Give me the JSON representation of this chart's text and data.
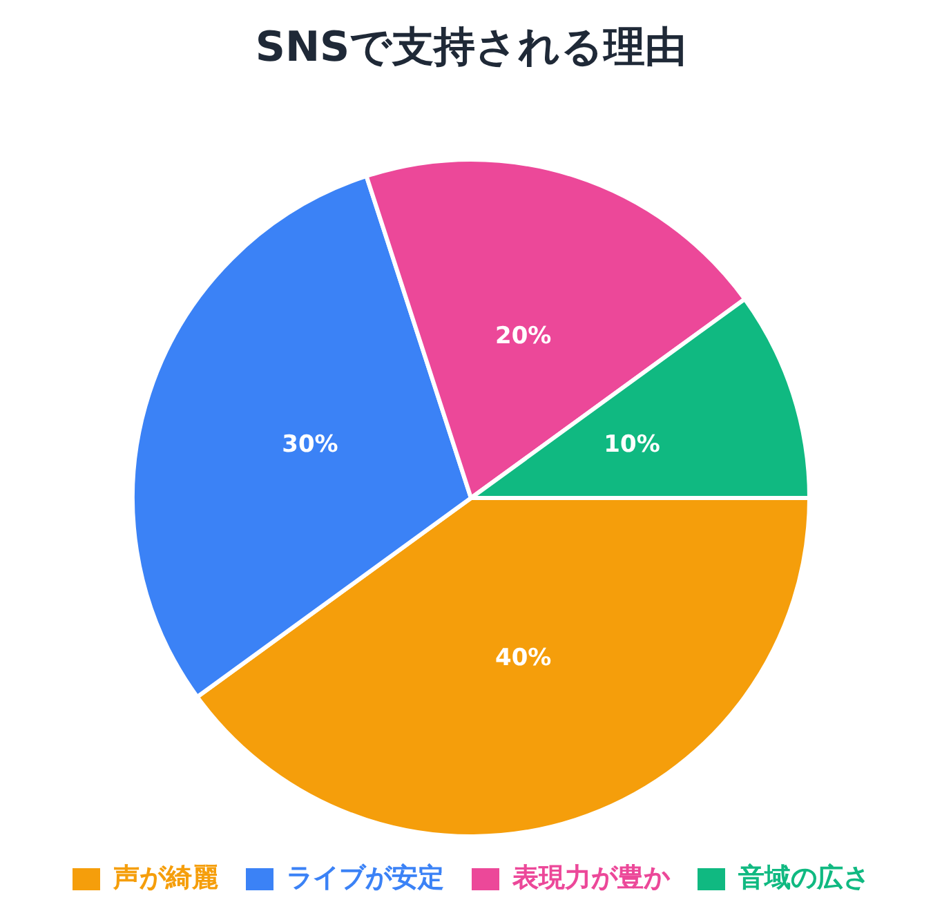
{
  "chart_data": {
    "type": "pie",
    "title": "SNSで支持される理由",
    "categories": [
      "声が綺麗",
      "ライブが安定",
      "表現力が豊か",
      "音域の広さ"
    ],
    "values": [
      40,
      30,
      20,
      10
    ],
    "colors": [
      "#f59e0b",
      "#3b82f6",
      "#ec4899",
      "#10b981"
    ],
    "value_labels": [
      "40%",
      "30%",
      "20%",
      "10%"
    ],
    "legend": "bottom"
  }
}
